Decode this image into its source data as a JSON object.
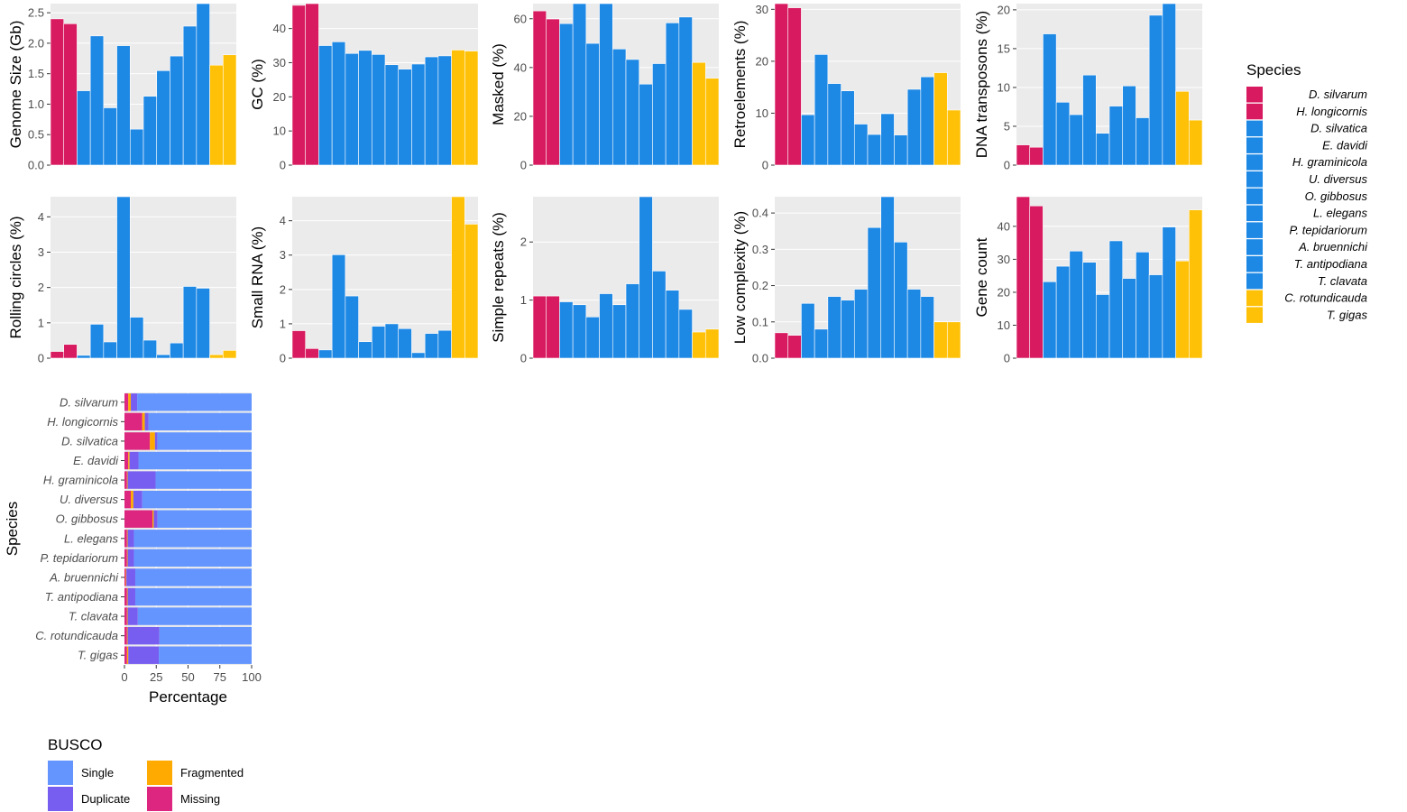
{
  "species": [
    "D. silvarum",
    "H. longicornis",
    "D. silvatica",
    "E. davidi",
    "H. graminicola",
    "U. diversus",
    "O. gibbosus",
    "L. elegans",
    "P. tepidariorum",
    "A. bruennichi",
    "T. antipodiana",
    "T. clavata",
    "C. rotundicauda",
    "T. gigas"
  ],
  "group_colors": [
    "#d81b60",
    "#d81b60",
    "#1e88e5",
    "#1e88e5",
    "#1e88e5",
    "#1e88e5",
    "#1e88e5",
    "#1e88e5",
    "#1e88e5",
    "#1e88e5",
    "#1e88e5",
    "#1e88e5",
    "#ffc107",
    "#ffc107"
  ],
  "chart_data": [
    {
      "type": "bar",
      "ylabel": "Genome Size (Gb)",
      "ylim": [
        0,
        2.65
      ],
      "yticks": [
        0,
        0.5,
        1,
        1.5,
        2,
        2.5
      ],
      "tick_labels": [
        "0.0",
        "0.5",
        "1.0",
        "1.5",
        "2.0",
        "2.5"
      ],
      "values": [
        2.4,
        2.32,
        1.22,
        2.12,
        0.94,
        1.96,
        0.59,
        1.13,
        1.55,
        1.79,
        2.28,
        2.65,
        1.64,
        1.81
      ]
    },
    {
      "type": "bar",
      "ylabel": "GC (%)",
      "ylim": [
        0,
        47.3
      ],
      "yticks": [
        0,
        10,
        20,
        30,
        40
      ],
      "tick_labels": [
        "0",
        "10",
        "20",
        "30",
        "40"
      ],
      "values": [
        46.8,
        47.3,
        35.0,
        36.1,
        32.7,
        33.6,
        32.4,
        29.4,
        28.1,
        29.6,
        31.7,
        32.0,
        33.7,
        33.4
      ]
    },
    {
      "type": "bar",
      "ylabel": "Masked (%)",
      "ylim": [
        0,
        66.2
      ],
      "yticks": [
        0,
        20,
        40,
        60
      ],
      "tick_labels": [
        "0",
        "20",
        "40",
        "60"
      ],
      "values": [
        63.2,
        59.9,
        58.0,
        66.2,
        49.9,
        66.2,
        47.6,
        43.3,
        33.2,
        41.6,
        58.3,
        60.7,
        42.1,
        35.6
      ]
    },
    {
      "type": "bar",
      "ylabel": "Retroelements (%)",
      "ylim": [
        0,
        31.1
      ],
      "yticks": [
        0,
        10,
        20,
        30
      ],
      "tick_labels": [
        "0",
        "10",
        "20",
        "30"
      ],
      "values": [
        31.1,
        30.3,
        9.7,
        21.3,
        15.7,
        14.3,
        7.9,
        5.9,
        9.9,
        5.8,
        14.6,
        17.0,
        17.8,
        10.6
      ]
    },
    {
      "type": "bar",
      "ylabel": "DNA transposons (%)",
      "ylim": [
        0,
        20.8
      ],
      "yticks": [
        0,
        5,
        10,
        15,
        20
      ],
      "tick_labels": [
        "0",
        "5",
        "10",
        "15",
        "20"
      ],
      "values": [
        2.6,
        2.3,
        16.9,
        8.1,
        6.5,
        11.6,
        4.1,
        7.6,
        10.2,
        6.1,
        19.3,
        20.8,
        9.5,
        5.8
      ]
    },
    {
      "type": "bar",
      "ylabel": "Rolling circles (%)",
      "ylim": [
        0,
        4.57
      ],
      "yticks": [
        0,
        1,
        2,
        3,
        4
      ],
      "tick_labels": [
        "0",
        "1",
        "2",
        "3",
        "4"
      ],
      "values": [
        0.19,
        0.39,
        0.08,
        0.96,
        0.46,
        4.57,
        1.16,
        0.51,
        0.1,
        0.43,
        2.03,
        1.98,
        0.1,
        0.22
      ]
    },
    {
      "type": "bar",
      "ylabel": "Small RNA (%)",
      "ylim": [
        0,
        4.7
      ],
      "yticks": [
        0,
        1,
        2,
        3,
        4
      ],
      "tick_labels": [
        "0",
        "1",
        "2",
        "3",
        "4"
      ],
      "values": [
        0.8,
        0.28,
        0.24,
        3.01,
        1.81,
        0.48,
        0.93,
        1.0,
        0.86,
        0.16,
        0.72,
        0.81,
        4.7,
        3.9
      ]
    },
    {
      "type": "bar",
      "ylabel": "Simple repeats (%)",
      "ylim": [
        0,
        2.78
      ],
      "yticks": [
        0,
        1,
        2
      ],
      "tick_labels": [
        "0",
        "1",
        "2"
      ],
      "values": [
        1.07,
        1.07,
        0.97,
        0.92,
        0.71,
        1.11,
        0.92,
        1.28,
        2.78,
        1.5,
        1.17,
        0.84,
        0.45,
        0.5
      ]
    },
    {
      "type": "bar",
      "ylabel": "Low complexity (%)",
      "ylim": [
        0,
        0.445
      ],
      "yticks": [
        0,
        0.1,
        0.2,
        0.3,
        0.4
      ],
      "tick_labels": [
        "0.0",
        "0.1",
        "0.2",
        "0.3",
        "0.4"
      ],
      "values": [
        0.07,
        0.063,
        0.151,
        0.08,
        0.17,
        0.16,
        0.19,
        0.36,
        0.445,
        0.32,
        0.19,
        0.17,
        0.1,
        0.1
      ]
    },
    {
      "type": "bar",
      "ylabel": "Gene count",
      "ylim": [
        0,
        49
      ],
      "yticks": [
        0,
        10,
        20,
        30,
        40
      ],
      "tick_labels": [
        "0",
        "10",
        "20",
        "30",
        "40"
      ],
      "values": [
        49,
        46.2,
        23.2,
        27.9,
        32.5,
        29.1,
        19.3,
        35.6,
        24.2,
        32.2,
        25.3,
        39.8,
        29.5,
        45.0
      ]
    },
    {
      "type": "bar",
      "orientation": "horizontal",
      "stacked": true,
      "xlabel": "Percentage",
      "ylabel": "Species",
      "xlim": [
        0,
        100
      ],
      "xticks": [
        0,
        25,
        50,
        75,
        100
      ],
      "tick_labels": [
        "0",
        "25",
        "50",
        "75",
        "100"
      ],
      "series": [
        {
          "name": "Missing",
          "values": [
            3,
            14,
            20,
            3,
            2,
            5,
            22,
            2,
            2,
            1,
            2,
            2,
            2,
            2
          ]
        },
        {
          "name": "Fragmented",
          "values": [
            2,
            2,
            4,
            1,
            0.5,
            2,
            1,
            0.5,
            0.5,
            0.5,
            0.5,
            0.5,
            0.5,
            1
          ]
        },
        {
          "name": "Duplicate",
          "values": [
            5,
            3,
            2,
            7,
            22,
            7,
            3,
            5,
            5,
            7,
            6,
            8,
            25,
            24
          ]
        },
        {
          "name": "Single",
          "values": [
            90,
            81,
            74,
            89,
            75.5,
            86,
            74,
            92.5,
            92.5,
            91.5,
            91.5,
            89.5,
            72.5,
            73
          ]
        }
      ]
    }
  ],
  "legend_species": {
    "title": "Species"
  },
  "legend_busco": {
    "title": "BUSCO",
    "items": [
      {
        "label": "Single",
        "color": "#6495ff"
      },
      {
        "label": "Duplicate",
        "color": "#785ef0"
      },
      {
        "label": "Fragmented",
        "color": "#ffaa00"
      },
      {
        "label": "Missing",
        "color": "#dc267f"
      }
    ]
  }
}
